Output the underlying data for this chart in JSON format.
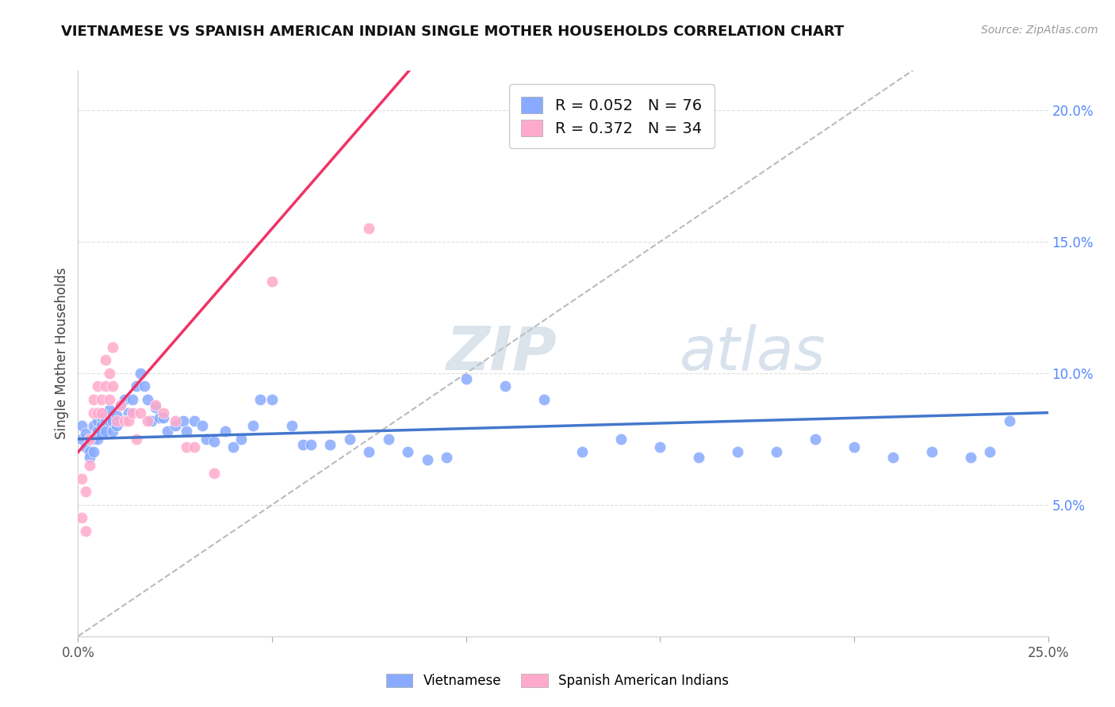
{
  "title": "VIETNAMESE VS SPANISH AMERICAN INDIAN SINGLE MOTHER HOUSEHOLDS CORRELATION CHART",
  "source": "Source: ZipAtlas.com",
  "ylabel": "Single Mother Households",
  "xlim": [
    0.0,
    0.25
  ],
  "ylim": [
    0.0,
    0.215
  ],
  "xtick_pos": [
    0.0,
    0.05,
    0.1,
    0.15,
    0.2,
    0.25
  ],
  "xticklabels": [
    "0.0%",
    "",
    "",
    "",
    "",
    "25.0%"
  ],
  "yticks_right": [
    0.05,
    0.1,
    0.15,
    0.2
  ],
  "yticklabels_right": [
    "5.0%",
    "10.0%",
    "15.0%",
    "20.0%"
  ],
  "blue_color": "#88aaff",
  "pink_color": "#ffaacc",
  "blue_line_color": "#4477cc",
  "pink_line_color": "#ee3366",
  "diagonal_color": "#bbbbbb",
  "label1": "Vietnamese",
  "label2": "Spanish American Indians",
  "legend_r1": "0.052",
  "legend_n1": "76",
  "legend_r2": "0.372",
  "legend_n2": "34",
  "watermark": "ZIPatlas",
  "blue_x": [
    0.001,
    0.001,
    0.002,
    0.002,
    0.003,
    0.003,
    0.003,
    0.004,
    0.004,
    0.004,
    0.005,
    0.005,
    0.005,
    0.006,
    0.006,
    0.006,
    0.007,
    0.007,
    0.008,
    0.008,
    0.009,
    0.009,
    0.01,
    0.01,
    0.011,
    0.012,
    0.013,
    0.014,
    0.015,
    0.016,
    0.017,
    0.018,
    0.019,
    0.02,
    0.021,
    0.022,
    0.023,
    0.025,
    0.027,
    0.028,
    0.03,
    0.032,
    0.033,
    0.035,
    0.038,
    0.04,
    0.042,
    0.045,
    0.047,
    0.05,
    0.055,
    0.058,
    0.06,
    0.065,
    0.07,
    0.075,
    0.08,
    0.085,
    0.09,
    0.095,
    0.1,
    0.11,
    0.12,
    0.13,
    0.14,
    0.15,
    0.16,
    0.17,
    0.18,
    0.19,
    0.2,
    0.21,
    0.22,
    0.23,
    0.235,
    0.24
  ],
  "blue_y": [
    0.08,
    0.075,
    0.077,
    0.072,
    0.07,
    0.068,
    0.075,
    0.08,
    0.075,
    0.07,
    0.082,
    0.078,
    0.075,
    0.083,
    0.08,
    0.077,
    0.082,
    0.078,
    0.086,
    0.082,
    0.082,
    0.078,
    0.084,
    0.08,
    0.088,
    0.09,
    0.085,
    0.09,
    0.095,
    0.1,
    0.095,
    0.09,
    0.082,
    0.087,
    0.083,
    0.083,
    0.078,
    0.08,
    0.082,
    0.078,
    0.082,
    0.08,
    0.075,
    0.074,
    0.078,
    0.072,
    0.075,
    0.08,
    0.09,
    0.09,
    0.08,
    0.073,
    0.073,
    0.073,
    0.075,
    0.07,
    0.075,
    0.07,
    0.067,
    0.068,
    0.098,
    0.095,
    0.09,
    0.07,
    0.075,
    0.072,
    0.068,
    0.07,
    0.07,
    0.075,
    0.072,
    0.068,
    0.07,
    0.068,
    0.07,
    0.082
  ],
  "pink_x": [
    0.001,
    0.001,
    0.002,
    0.002,
    0.003,
    0.003,
    0.004,
    0.004,
    0.005,
    0.005,
    0.006,
    0.006,
    0.007,
    0.007,
    0.008,
    0.008,
    0.009,
    0.009,
    0.01,
    0.011,
    0.012,
    0.013,
    0.014,
    0.015,
    0.016,
    0.018,
    0.02,
    0.022,
    0.025,
    0.028,
    0.03,
    0.035,
    0.05,
    0.075
  ],
  "pink_y": [
    0.06,
    0.045,
    0.055,
    0.04,
    0.075,
    0.065,
    0.09,
    0.085,
    0.095,
    0.085,
    0.09,
    0.085,
    0.105,
    0.095,
    0.1,
    0.09,
    0.11,
    0.095,
    0.082,
    0.088,
    0.082,
    0.082,
    0.085,
    0.075,
    0.085,
    0.082,
    0.088,
    0.085,
    0.082,
    0.072,
    0.072,
    0.062,
    0.135,
    0.155
  ]
}
